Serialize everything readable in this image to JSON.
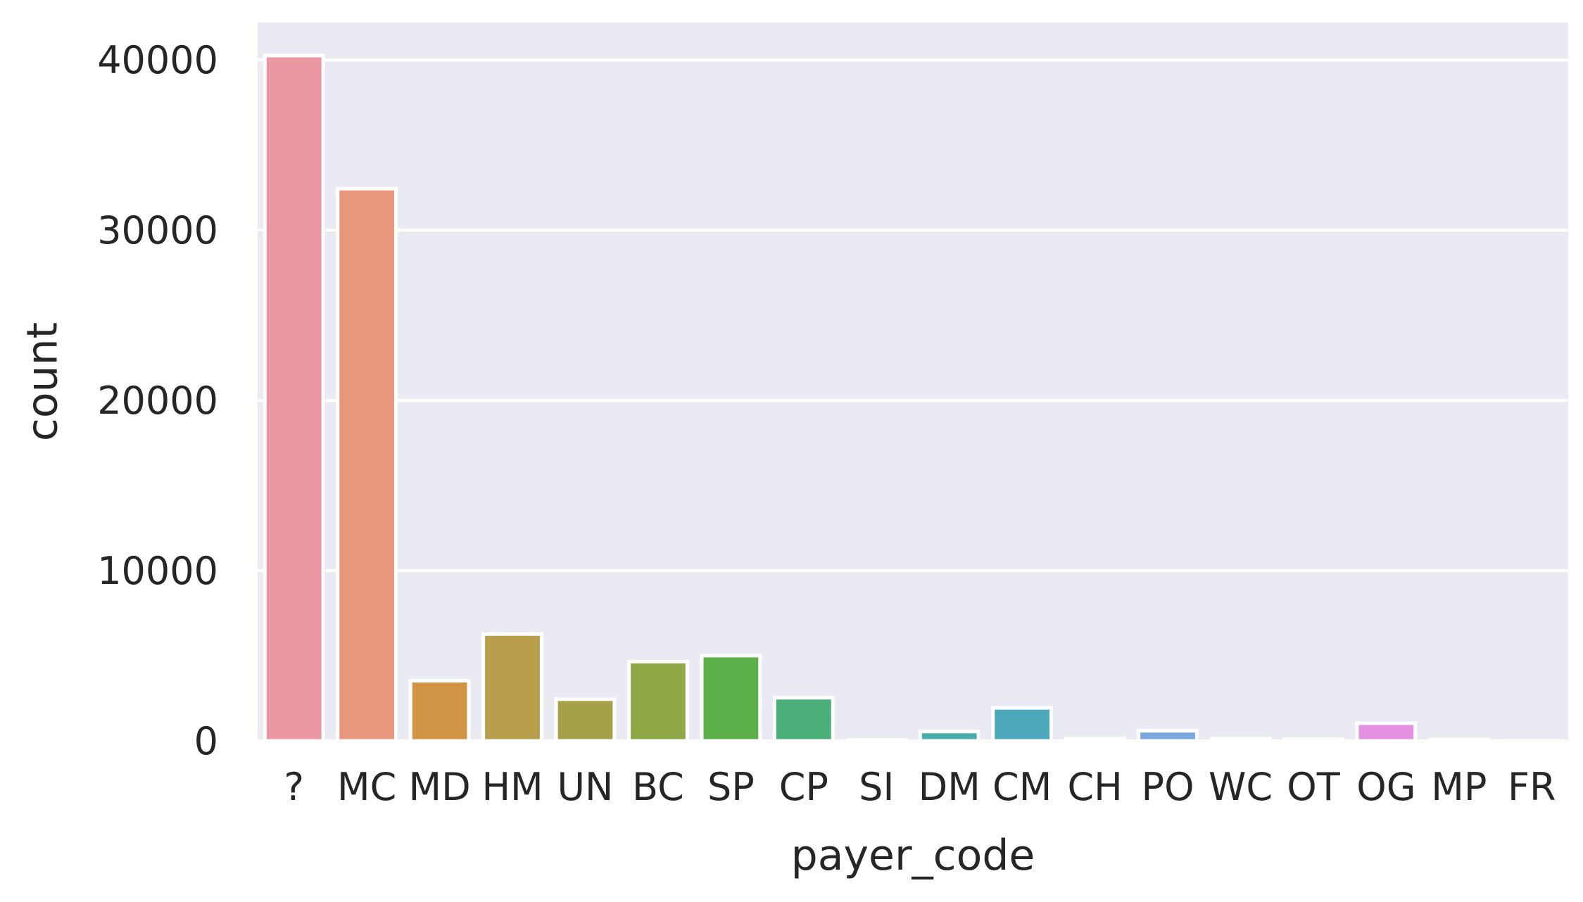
{
  "chart_data": {
    "type": "bar",
    "title": "",
    "xlabel": "payer_code",
    "ylabel": "count",
    "categories": [
      "?",
      "MC",
      "MD",
      "HM",
      "UN",
      "BC",
      "SP",
      "CP",
      "SI",
      "DM",
      "CM",
      "CH",
      "PO",
      "WC",
      "OT",
      "OG",
      "MP",
      "FR"
    ],
    "values": [
      40256,
      32439,
      3532,
      6274,
      2448,
      4655,
      5007,
      2533,
      55,
      549,
      1937,
      146,
      592,
      135,
      95,
      1033,
      79,
      1
    ],
    "colors": [
      "#ea96a3",
      "#e8967c",
      "#d29545",
      "#b89d4a",
      "#a5a14a",
      "#8fa846",
      "#5bae48",
      "#4aae79",
      "#4aad9a",
      "#49acad",
      "#4ba9bb",
      "#53a6cc",
      "#7aa7e0",
      "#a79fe6",
      "#cc96e6",
      "#e58fe2",
      "#e990c8",
      "#ea93b3"
    ],
    "ylim": [
      0,
      42200
    ],
    "yticks": [
      0,
      10000,
      20000,
      30000,
      40000
    ],
    "grid": true,
    "background": "#eaeaf2",
    "gridColor": "#ffffff"
  }
}
